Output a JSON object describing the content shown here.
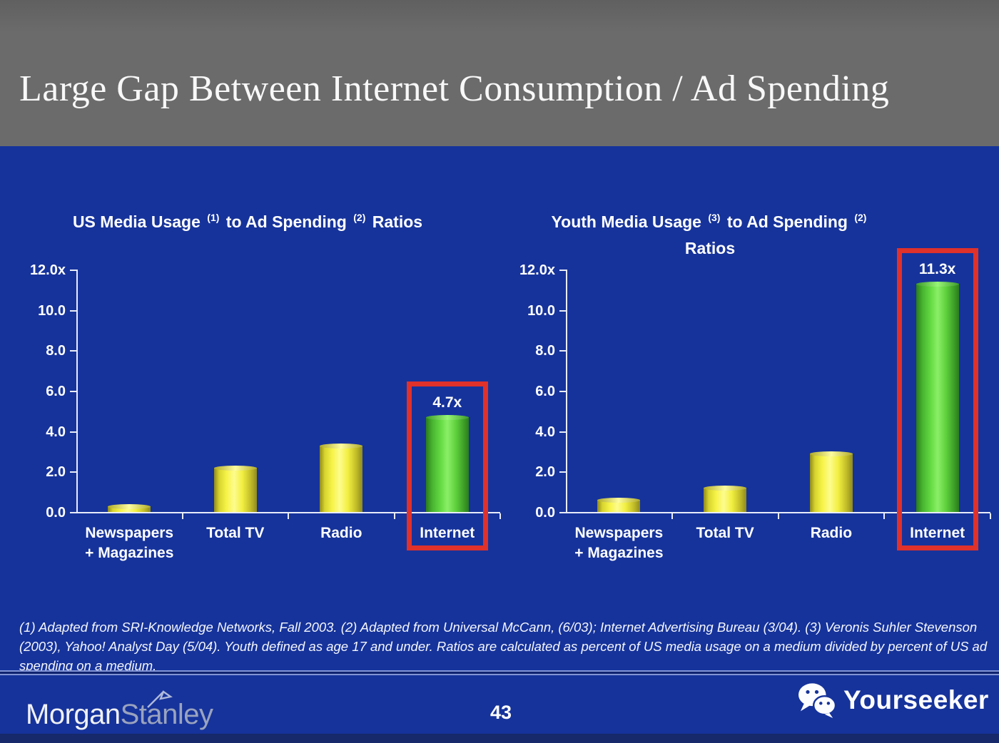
{
  "header": {
    "title": "Large Gap Between Internet Consumption / Ad Spending"
  },
  "chart_data": [
    {
      "type": "bar",
      "title_parts": [
        {
          "text": "US Media Usage "
        },
        {
          "sup": "(1)"
        },
        {
          "text": " to Ad Spending "
        },
        {
          "sup": "(2)"
        },
        {
          "text": " Ratios"
        }
      ],
      "categories": [
        [
          "Newspapers",
          "+ Magazines"
        ],
        [
          "Total TV"
        ],
        [
          "Radio"
        ],
        [
          "Internet"
        ]
      ],
      "values": [
        0.3,
        2.2,
        3.3,
        4.7
      ],
      "bar_colors": [
        "yellow",
        "yellow",
        "yellow",
        "green"
      ],
      "ylim": [
        0,
        12
      ],
      "yticks": [
        {
          "value": 12,
          "label": "12.0x"
        },
        {
          "value": 10,
          "label": "10.0"
        },
        {
          "value": 8,
          "label": "8.0"
        },
        {
          "value": 6,
          "label": "6.0"
        },
        {
          "value": 4,
          "label": "4.0"
        },
        {
          "value": 2,
          "label": "2.0"
        },
        {
          "value": 0,
          "label": "0.0"
        }
      ],
      "grid": false,
      "legend": null,
      "highlight": {
        "index": 3,
        "label": "4.7x"
      }
    },
    {
      "type": "bar",
      "title_parts": [
        {
          "text": "Youth Media Usage "
        },
        {
          "sup": "(3)"
        },
        {
          "text": " to Ad Spending "
        },
        {
          "sup": "(2)"
        },
        {
          "br": true
        },
        {
          "text": "Ratios"
        }
      ],
      "categories": [
        [
          "Newspapers",
          "+ Magazines"
        ],
        [
          "Total TV"
        ],
        [
          "Radio"
        ],
        [
          "Internet"
        ]
      ],
      "values": [
        0.6,
        1.2,
        2.9,
        11.3
      ],
      "bar_colors": [
        "yellow",
        "yellow",
        "yellow",
        "green"
      ],
      "ylim": [
        0,
        12
      ],
      "yticks": [
        {
          "value": 12,
          "label": "12.0x"
        },
        {
          "value": 10,
          "label": "10.0"
        },
        {
          "value": 8,
          "label": "8.0"
        },
        {
          "value": 6,
          "label": "6.0"
        },
        {
          "value": 4,
          "label": "4.0"
        },
        {
          "value": 2,
          "label": "2.0"
        },
        {
          "value": 0,
          "label": "0.0"
        }
      ],
      "grid": false,
      "legend": null,
      "highlight": {
        "index": 3,
        "label": "11.3x"
      }
    }
  ],
  "footnote": "(1) Adapted from SRI-Knowledge Networks, Fall 2003.  (2) Adapted from Universal McCann, (6/03); Internet Advertising Bureau (3/04). (3) Veronis Suhler Stevenson (2003), Yahoo! Analyst Day (5/04).  Youth defined as age 17 and under.  Ratios are calculated as percent of US media usage on a medium divided by percent of US ad spending on a medium.",
  "footer": {
    "brand_first": "Morgan",
    "brand_second": "Stanley",
    "page_number": "43",
    "watermark": "Yourseeker"
  },
  "colors": {
    "background_blue": "#16339B",
    "header_gray": "#6B6B6B",
    "bar_yellow": "#F4F23E",
    "bar_green": "#5BCE3A",
    "highlight_red": "#E0312A",
    "axis": "#E8ECF8",
    "brand_secondary": "#9AA3BE"
  }
}
